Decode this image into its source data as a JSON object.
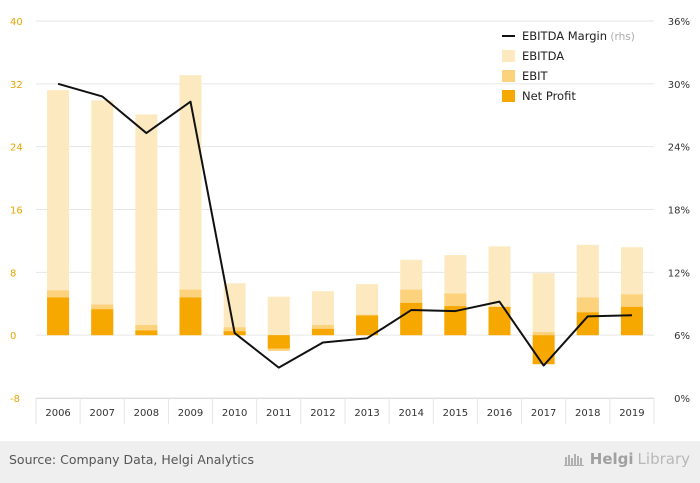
{
  "chart_data": {
    "type": "bar",
    "categories": [
      "2006",
      "2007",
      "2008",
      "2009",
      "2010",
      "2011",
      "2012",
      "2013",
      "2014",
      "2015",
      "2016",
      "2017",
      "2018",
      "2019"
    ],
    "series": [
      {
        "name": "EBITDA",
        "kind": "bar",
        "color": "#fde9bf",
        "values": [
          31.2,
          29.9,
          28.1,
          33.1,
          6.6,
          4.9,
          5.6,
          6.5,
          9.6,
          10.2,
          11.3,
          7.9,
          11.5,
          11.2
        ]
      },
      {
        "name": "EBIT",
        "kind": "bar",
        "color": "#fdd27c",
        "values": [
          5.7,
          3.9,
          1.3,
          5.8,
          1.0,
          -2.0,
          1.3,
          2.6,
          5.8,
          5.3,
          3.6,
          0.4,
          4.8,
          5.2
        ]
      },
      {
        "name": "Net Profit",
        "kind": "bar",
        "color": "#f7a800",
        "values": [
          4.8,
          3.3,
          0.6,
          4.8,
          0.5,
          -1.7,
          0.8,
          2.5,
          4.1,
          3.7,
          3.6,
          -3.7,
          2.9,
          3.6
        ]
      },
      {
        "name": "EBITDA Margin",
        "kind": "line",
        "color": "#111111",
        "axis": "right",
        "values": [
          30.0,
          28.8,
          25.3,
          28.3,
          6.2,
          2.9,
          5.3,
          5.7,
          8.4,
          8.3,
          9.2,
          3.1,
          7.8,
          7.9
        ]
      }
    ],
    "ylim": [
      -8,
      40
    ],
    "yticks": [
      -8,
      0,
      8,
      16,
      24,
      32,
      40
    ],
    "y2lim": [
      0,
      36
    ],
    "y2ticks": [
      "0%",
      "6%",
      "12%",
      "18%",
      "24%",
      "30%",
      "36%"
    ],
    "legend_line_suffix": "(rhs)",
    "grid": true,
    "legend_position": "top-right"
  },
  "footer": {
    "source": "Source: Company Data, Helgi Analytics",
    "logo_bold": "Helgi",
    "logo_light": "Library"
  }
}
